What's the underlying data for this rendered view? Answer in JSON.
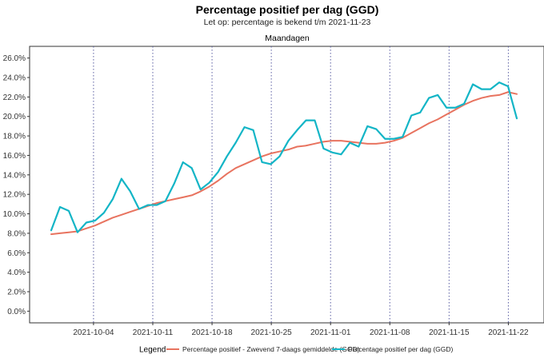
{
  "chart_data": {
    "type": "line",
    "title": "Percentage positief per dag (GGD)",
    "subtitle": "Let op: percentage is bekend t/m 2021-11-23",
    "facet_label": "Maandagen",
    "y_ticks": [
      "0.0%",
      "2.0%",
      "4.0%",
      "6.0%",
      "8.0%",
      "10.0%",
      "12.0%",
      "14.0%",
      "16.0%",
      "18.0%",
      "20.0%",
      "22.0%",
      "24.0%",
      "26.0%"
    ],
    "ylim": [
      -1.2,
      27.2
    ],
    "x_start": "2021-09-29",
    "x_end": "2021-11-23",
    "x_ticks": [
      "2021-10-04",
      "2021-10-11",
      "2021-10-18",
      "2021-10-25",
      "2021-11-01",
      "2021-11-08",
      "2021-11-15",
      "2021-11-22"
    ],
    "legend": {
      "title": "Legend",
      "position": "bottom"
    },
    "series": [
      {
        "name": "Percentage positief - Zwevend 7-daags gemiddelde (GGD)",
        "color": "#e8735f",
        "values": [
          7.9,
          8.0,
          8.1,
          8.2,
          8.5,
          8.8,
          9.2,
          9.6,
          9.9,
          10.2,
          10.5,
          10.8,
          11.1,
          11.3,
          11.5,
          11.7,
          11.9,
          12.3,
          12.8,
          13.4,
          14.1,
          14.7,
          15.1,
          15.5,
          15.9,
          16.2,
          16.4,
          16.6,
          16.9,
          17.0,
          17.2,
          17.4,
          17.5,
          17.5,
          17.4,
          17.3,
          17.2,
          17.2,
          17.3,
          17.5,
          17.8,
          18.3,
          18.8,
          19.3,
          19.7,
          20.2,
          20.7,
          21.2,
          21.6,
          21.9,
          22.1,
          22.2,
          22.5,
          22.3
        ]
      },
      {
        "name": "Percentage positief per dag (GGD)",
        "color": "#13b5c6",
        "values": [
          8.3,
          10.7,
          10.3,
          8.1,
          9.1,
          9.3,
          10.1,
          11.5,
          13.6,
          12.3,
          10.5,
          10.9,
          10.9,
          11.3,
          13.1,
          15.3,
          14.7,
          12.5,
          13.2,
          14.3,
          15.9,
          17.3,
          18.9,
          18.6,
          15.3,
          15.1,
          15.9,
          17.5,
          18.6,
          19.6,
          19.6,
          16.7,
          16.3,
          16.1,
          17.3,
          16.9,
          19.0,
          18.7,
          17.7,
          17.7,
          17.9,
          20.1,
          20.4,
          21.9,
          22.2,
          20.9,
          20.9,
          21.3,
          23.3,
          22.8,
          22.8,
          23.5,
          23.1,
          19.8
        ]
      }
    ]
  }
}
